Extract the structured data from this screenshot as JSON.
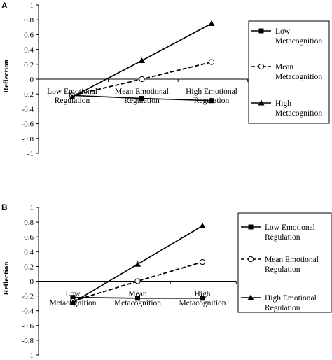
{
  "chart_data": [
    {
      "panel": "A",
      "type": "line",
      "ylabel": "Reflection",
      "ylim": [
        -1,
        1
      ],
      "yticks": [
        1,
        0.8,
        0.6,
        0.4,
        0.2,
        0,
        -0.2,
        -0.4,
        -0.6,
        -0.8,
        -1
      ],
      "categories": [
        [
          "Low Emotional",
          "Regulation"
        ],
        [
          "Mean Emotional",
          "Regulation"
        ],
        [
          "High Emotional",
          "Regulation"
        ]
      ],
      "series": [
        {
          "name": [
            "Low",
            "Metacognition"
          ],
          "values": [
            -0.22,
            -0.26,
            -0.29
          ],
          "style": "solid",
          "marker": "square"
        },
        {
          "name": [
            "Mean",
            "Metacognition"
          ],
          "values": [
            -0.22,
            0.0,
            0.23
          ],
          "style": "dashed",
          "marker": "circle-open"
        },
        {
          "name": [
            "High",
            "Metacognition"
          ],
          "values": [
            -0.24,
            0.25,
            0.75
          ],
          "style": "solid",
          "marker": "triangle"
        }
      ]
    },
    {
      "panel": "B",
      "type": "line",
      "ylabel": "Reflection",
      "ylim": [
        -1,
        1
      ],
      "yticks": [
        1,
        0.8,
        0.6,
        0.4,
        0.2,
        0,
        -0.2,
        -0.4,
        -0.6,
        -0.8,
        -1
      ],
      "categories": [
        [
          "Low",
          "Metacognition"
        ],
        [
          "Mean",
          "Metacognition"
        ],
        [
          "High",
          "Metacognition"
        ]
      ],
      "series": [
        {
          "name": [
            "Low Emotional",
            "Regulation"
          ],
          "values": [
            -0.22,
            -0.23,
            -0.23
          ],
          "style": "solid",
          "marker": "square"
        },
        {
          "name": [
            "Mean Emotional",
            "Regulation"
          ],
          "values": [
            -0.27,
            0.0,
            0.26
          ],
          "style": "dashed",
          "marker": "circle-open"
        },
        {
          "name": [
            "High Emotional",
            "Regulation"
          ],
          "values": [
            -0.29,
            0.23,
            0.75
          ],
          "style": "solid",
          "marker": "triangle"
        }
      ]
    }
  ]
}
